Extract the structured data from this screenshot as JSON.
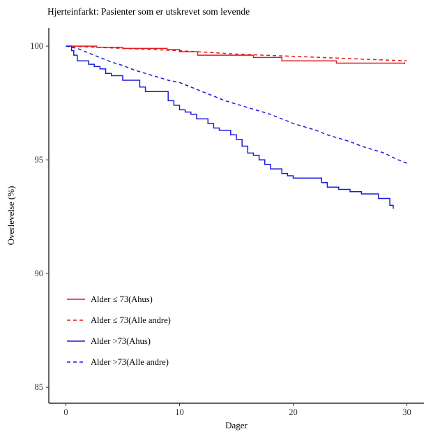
{
  "chart_data": {
    "type": "line",
    "title": "Hjerteinfarkt: Pasienter som er utskrevet som levende",
    "xlabel": "Dager",
    "ylabel": "Overlevelse (%)",
    "xlim": [
      -1.5,
      31.5
    ],
    "ylim": [
      84.3,
      100.8
    ],
    "xticks": [
      0,
      10,
      20,
      30
    ],
    "yticks": [
      85,
      90,
      95,
      100
    ],
    "grid": false,
    "legend_position": "bottom-left",
    "series": [
      {
        "name": "Alder ≤ 73(Ahus)",
        "color": "#e41a1c",
        "dash": "solid",
        "step": true,
        "x": [
          0,
          2.7,
          5.0,
          8.9,
          10.0,
          11.6,
          16.5,
          19.0,
          23.8,
          29.8
        ],
        "y": [
          100.0,
          99.95,
          99.9,
          99.85,
          99.75,
          99.6,
          99.5,
          99.35,
          99.25,
          99.2
        ]
      },
      {
        "name": "Alder ≤ 73(Alle andre)",
        "color": "#e41a1c",
        "dash": "dashed",
        "step": false,
        "x": [
          0,
          5,
          10,
          15,
          20,
          25,
          30
        ],
        "y": [
          100.0,
          99.9,
          99.8,
          99.65,
          99.55,
          99.45,
          99.35
        ]
      },
      {
        "name": "Alder >73(Ahus)",
        "color": "#1c1cdc",
        "dash": "solid",
        "step": true,
        "x": [
          0,
          0.5,
          0.7,
          1.0,
          2.0,
          2.5,
          3.0,
          3.5,
          4.0,
          5.0,
          6.5,
          7.0,
          9.0,
          9.5,
          10.0,
          10.5,
          11.0,
          11.5,
          12.5,
          13.0,
          13.5,
          14.5,
          15.0,
          15.5,
          16.0,
          16.5,
          17.0,
          17.5,
          18.0,
          19.0,
          19.5,
          20.0,
          22.5,
          23.0,
          24.0,
          25.0,
          26.0,
          27.5,
          28.5,
          28.8
        ],
        "y": [
          100.0,
          99.8,
          99.6,
          99.35,
          99.2,
          99.1,
          99.0,
          98.8,
          98.7,
          98.5,
          98.2,
          98.0,
          97.6,
          97.4,
          97.2,
          97.1,
          97.0,
          96.8,
          96.6,
          96.4,
          96.3,
          96.1,
          95.9,
          95.6,
          95.3,
          95.2,
          95.0,
          94.8,
          94.6,
          94.4,
          94.3,
          94.2,
          94.0,
          93.8,
          93.7,
          93.6,
          93.5,
          93.3,
          93.0,
          92.85
        ]
      },
      {
        "name": "Alder >73(Alle andre)",
        "color": "#1c1cdc",
        "dash": "dashed",
        "step": false,
        "x": [
          0,
          1,
          2,
          3,
          4,
          5,
          6,
          7,
          8,
          9,
          10,
          11,
          12,
          13,
          14,
          15,
          16,
          17,
          18,
          19,
          20,
          21,
          22,
          23,
          24,
          25,
          26,
          27,
          28,
          29,
          30
        ],
        "y": [
          100.0,
          99.9,
          99.7,
          99.5,
          99.3,
          99.15,
          98.95,
          98.8,
          98.65,
          98.5,
          98.4,
          98.2,
          98.0,
          97.8,
          97.6,
          97.45,
          97.3,
          97.15,
          97.0,
          96.8,
          96.6,
          96.45,
          96.3,
          96.1,
          95.95,
          95.8,
          95.6,
          95.45,
          95.3,
          95.05,
          94.85
        ]
      }
    ]
  }
}
